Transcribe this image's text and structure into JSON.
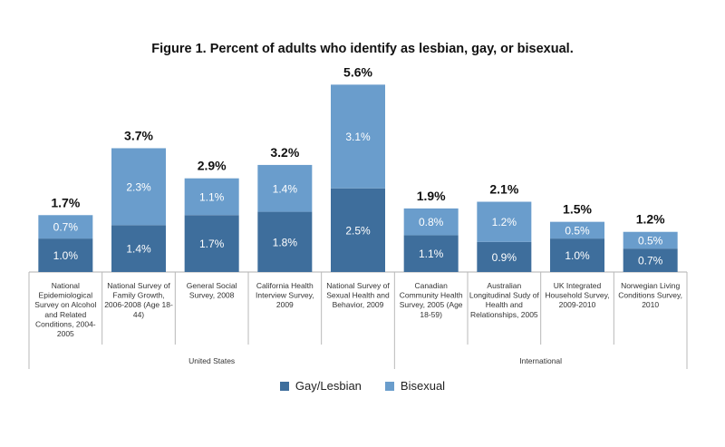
{
  "chart_data": {
    "type": "bar",
    "stacked": true,
    "title": "Figure 1. Percent of adults who identify as lesbian, gay, or bisexual.",
    "categories": [
      "National Epidemiological Survey on Alcohol and Related Conditions, 2004-2005",
      "National Survey of Family Growth, 2006-2008 (Age 18-44)",
      "General Social Survey, 2008",
      "California Health Interview Survey, 2009",
      "National Survey of Sexual Health and Behavior, 2009",
      "Canadian Community Health Survey, 2005 (Age 18-59)",
      "Australian Longitudinal Sudy of Health and Relationships, 2005",
      "UK Integrated Household Survey, 2009-2010",
      "Norwegian Living Conditions Survey, 2010"
    ],
    "category_label_lines": [
      [
        "National",
        "Epidemiological",
        "Survey on Alcohol",
        "and Related",
        "Conditions, 2004-",
        "2005"
      ],
      [
        "National Survey of",
        "Family Growth,",
        "2006-2008 (Age 18-",
        "44)"
      ],
      [
        "General Social",
        "Survey, 2008"
      ],
      [
        "California Health",
        "Interview Survey,",
        "2009"
      ],
      [
        "National Survey of",
        "Sexual Health and",
        "Behavior, 2009"
      ],
      [
        "Canadian",
        "Community Health",
        "Survey, 2005 (Age",
        "18-59)"
      ],
      [
        "Australian",
        "Longitudinal Sudy of",
        "Health and",
        "Relationships, 2005"
      ],
      [
        "UK Integrated",
        "Household Survey,",
        "2009-2010"
      ],
      [
        "Norwegian Living",
        "Conditions Survey,",
        "2010"
      ]
    ],
    "series": [
      {
        "name": "Gay/Lesbian",
        "color": "#3e6e9c",
        "values": [
          1.0,
          1.4,
          1.7,
          1.8,
          2.5,
          1.1,
          0.9,
          1.0,
          0.7
        ],
        "labels": [
          "1.0%",
          "1.4%",
          "1.7%",
          "1.8%",
          "2.5%",
          "1.1%",
          "0.9%",
          "1.0%",
          "0.7%"
        ]
      },
      {
        "name": "Bisexual",
        "color": "#6a9dcc",
        "values": [
          0.7,
          2.3,
          1.1,
          1.4,
          3.1,
          0.8,
          1.2,
          0.5,
          0.5
        ],
        "labels": [
          "0.7%",
          "2.3%",
          "1.1%",
          "1.4%",
          "3.1%",
          "0.8%",
          "1.2%",
          "0.5%",
          "0.5%"
        ]
      }
    ],
    "totals": [
      1.7,
      3.7,
      2.9,
      3.2,
      5.6,
      1.9,
      2.1,
      1.5,
      1.2
    ],
    "total_labels": [
      "1.7%",
      "3.7%",
      "2.9%",
      "3.2%",
      "5.6%",
      "1.9%",
      "2.1%",
      "1.5%",
      "1.2%"
    ],
    "groups": [
      {
        "label": "United States",
        "start": 0,
        "end": 4
      },
      {
        "label": "International",
        "start": 5,
        "end": 8
      }
    ],
    "legend_position": "bottom",
    "grid": false
  }
}
